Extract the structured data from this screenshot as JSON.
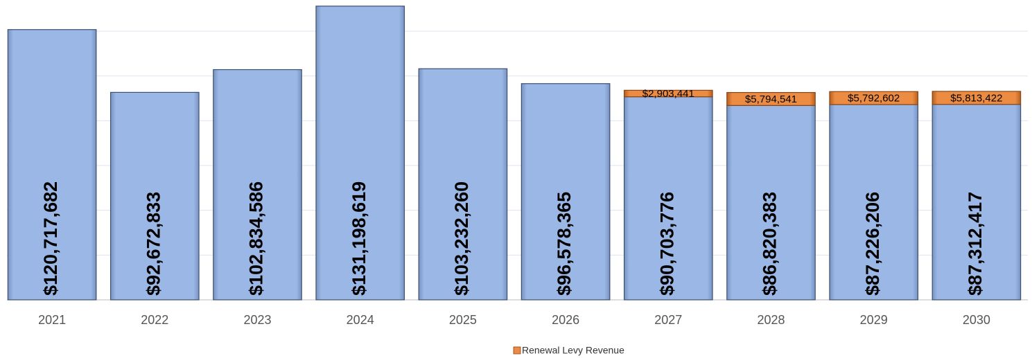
{
  "chart_data": {
    "type": "stacked_bar",
    "categories": [
      "2021",
      "2022",
      "2023",
      "2024",
      "2025",
      "2026",
      "2027",
      "2028",
      "2029",
      "2030"
    ],
    "series": [
      {
        "color": "#95b3e2",
        "values": [
          120717682,
          92672833,
          102834586,
          131198619,
          103232260,
          96578365,
          90703776,
          86820383,
          87226206,
          87312417
        ],
        "value_labels": [
          "$120,717,682",
          "$92,672,833",
          "$102,834,586",
          "$131,198,619",
          "$103,232,260",
          "$96,578,365",
          "$90,703,776",
          "$86,820,383",
          "$87,226,206",
          "$87,312,417"
        ]
      },
      {
        "name": "Renewal Levy Revenue",
        "color": "#e8843a",
        "values": [
          null,
          null,
          null,
          null,
          null,
          null,
          2903441,
          5794541,
          5792602,
          5813422
        ],
        "value_labels": [
          null,
          null,
          null,
          null,
          null,
          null,
          "$2,903,441",
          "$5,794,541",
          "$5,792,602",
          "$5,813,422"
        ]
      }
    ],
    "ylim": [
      0,
      133000000
    ],
    "yticks": [
      0,
      20000000,
      40000000,
      60000000,
      80000000,
      100000000,
      120000000
    ],
    "grid": true
  }
}
